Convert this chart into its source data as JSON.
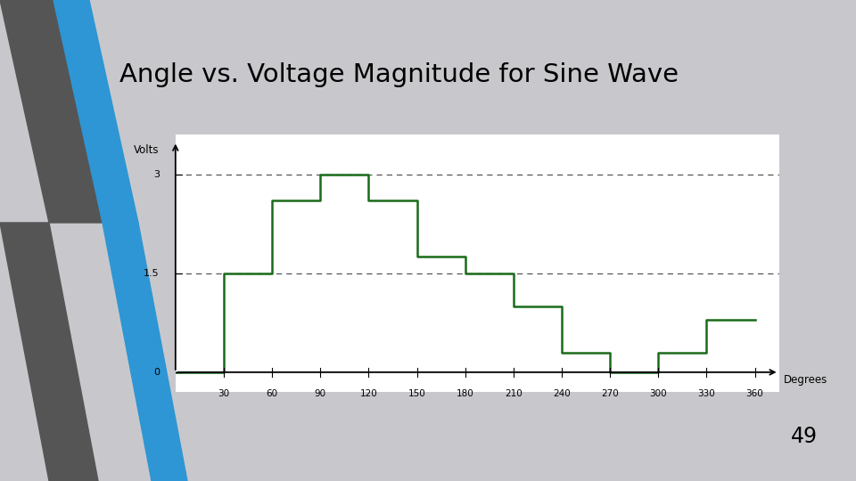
{
  "title": "Angle vs. Voltage Magnitude for Sine Wave",
  "slide_number": "49",
  "ylabel": "Volts",
  "xlabel": "Degrees",
  "slide_bg": "#c8c8cc",
  "plot_bg": "#ffffff",
  "line_color": "#1a6b1a",
  "line_width": 1.8,
  "dashed_color": "#555555",
  "blue_color": "#2e96d4",
  "dark_color": "#555555",
  "ytick_labels": [
    "0",
    "1.5",
    "3"
  ],
  "ytick_vals": [
    0,
    1.5,
    3.0
  ],
  "xtick_vals": [
    30,
    60,
    90,
    120,
    150,
    180,
    210,
    240,
    270,
    300,
    330,
    360
  ],
  "xlim": [
    0,
    375
  ],
  "ylim": [
    -0.3,
    3.6
  ],
  "step_x": [
    0,
    30,
    30,
    60,
    60,
    90,
    90,
    120,
    120,
    150,
    150,
    180,
    180,
    210,
    210,
    240,
    240,
    270,
    270,
    300,
    300,
    330,
    330,
    360
  ],
  "step_y": [
    0,
    0,
    1.5,
    1.5,
    2.6,
    2.6,
    3.0,
    3.0,
    2.6,
    2.6,
    1.75,
    1.75,
    1.5,
    1.5,
    1.0,
    1.0,
    0.3,
    0.3,
    0.0,
    0.0,
    0.3,
    0.3,
    0.8,
    0.8
  ]
}
